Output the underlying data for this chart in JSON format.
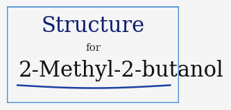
{
  "title": "Structure",
  "subtitle": "for",
  "main_text": "2-Methyl-2-butanol",
  "title_color": "#0d1f6e",
  "subtitle_color": "#333333",
  "main_text_color": "#111111",
  "background_color": "#f5f5f5",
  "border_color": "#4a8fd4",
  "title_fontsize": 22,
  "subtitle_fontsize": 11,
  "main_text_fontsize": 22,
  "border_linewidth": 2.0,
  "curve_color": "#1a3fa0",
  "curve_linewidth": 1.8
}
